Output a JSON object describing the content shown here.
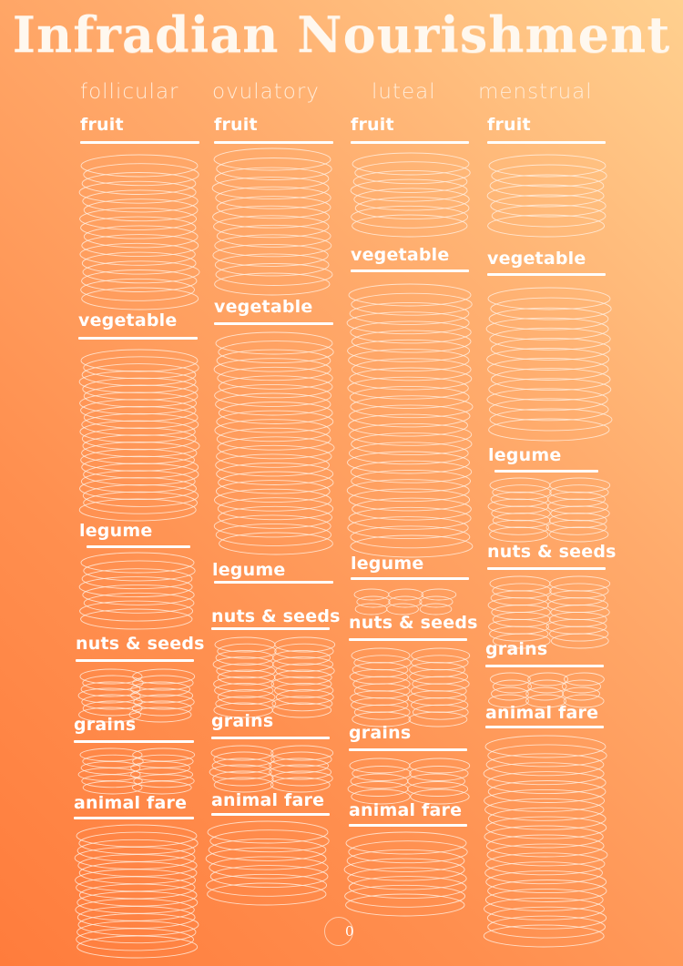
{
  "title": "Infradian Nourishment",
  "page_number": "0",
  "columns": [
    {
      "phase": "follicular",
      "sections": [
        "fruit",
        "vegetable",
        "legume",
        "nuts & seeds",
        "grains",
        "animal fare"
      ]
    },
    {
      "phase": "ovulatory",
      "sections": [
        "fruit",
        "vegetable",
        "legume",
        "nuts & seeds",
        "grains",
        "animal fare"
      ]
    },
    {
      "phase": "luteal",
      "sections": [
        "fruit",
        "vegetable",
        "legume",
        "nuts & seeds",
        "grains",
        "animal fare"
      ]
    },
    {
      "phase": "menstrual",
      "sections": [
        "fruit",
        "vegetable",
        "legume",
        "nuts & seeds",
        "grains",
        "animal fare"
      ]
    }
  ]
}
